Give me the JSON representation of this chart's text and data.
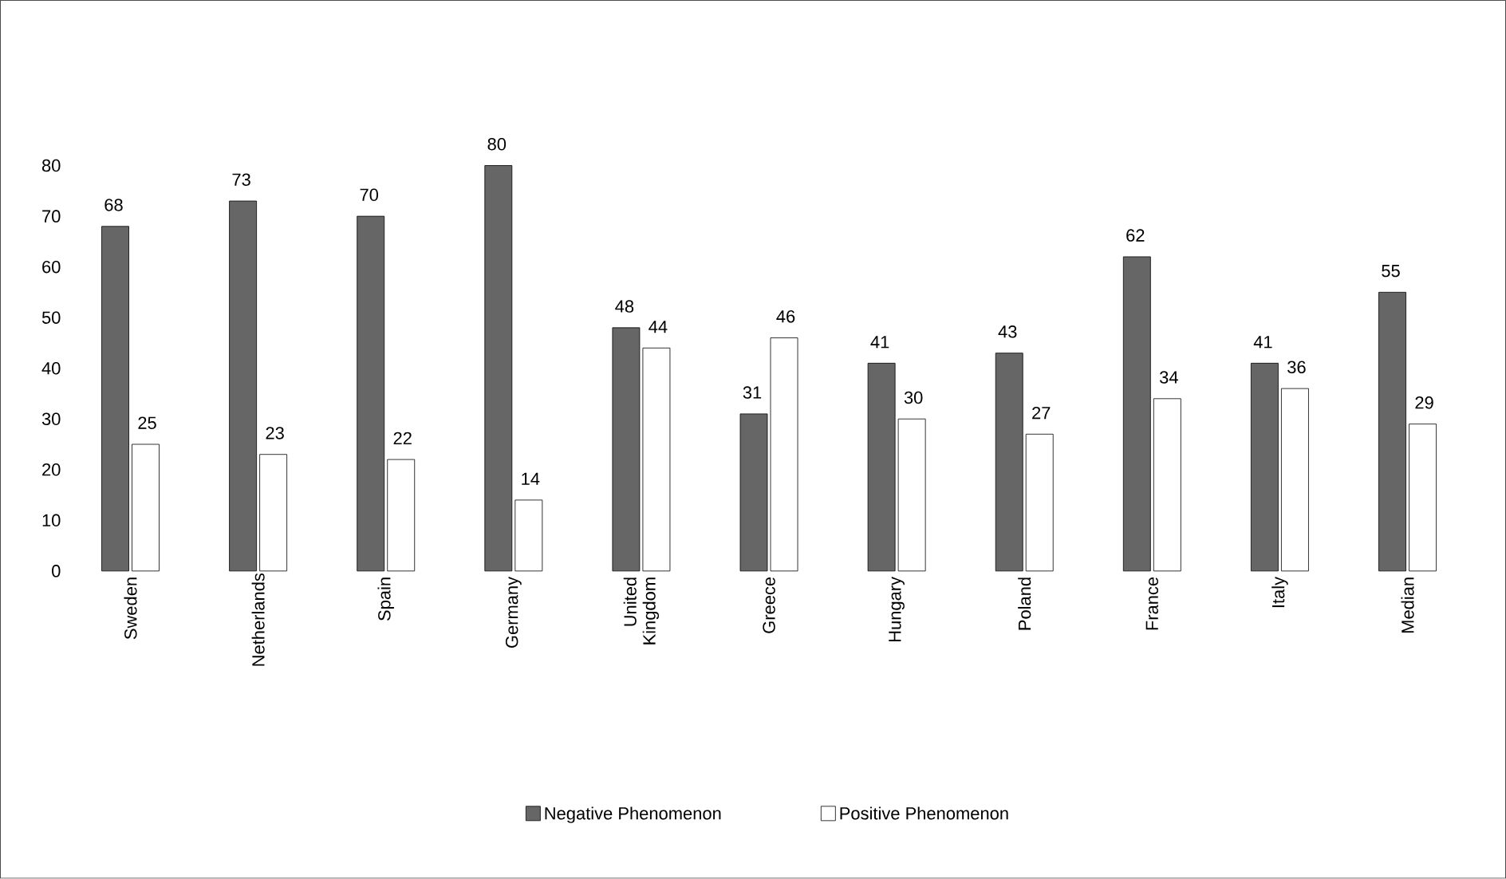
{
  "chart_data": {
    "type": "bar",
    "categories": [
      "Sweden",
      "Netherlands",
      "Spain",
      "Germany",
      "United Kingdom",
      "Greece",
      "Hungary",
      "Poland",
      "France",
      "Italy",
      "Median"
    ],
    "series": [
      {
        "name": "Negative Phenomenon",
        "color": "#666666",
        "values": [
          68,
          73,
          70,
          80,
          48,
          31,
          41,
          43,
          62,
          41,
          55
        ]
      },
      {
        "name": "Positive Phenomenon",
        "color": "#ffffff",
        "values": [
          25,
          23,
          22,
          14,
          44,
          46,
          30,
          27,
          34,
          36,
          29
        ]
      }
    ],
    "ylim": [
      0,
      80
    ],
    "yticks": [
      0,
      10,
      20,
      30,
      40,
      50,
      60,
      70,
      80
    ],
    "data_labels": true,
    "legend": "bottom"
  }
}
